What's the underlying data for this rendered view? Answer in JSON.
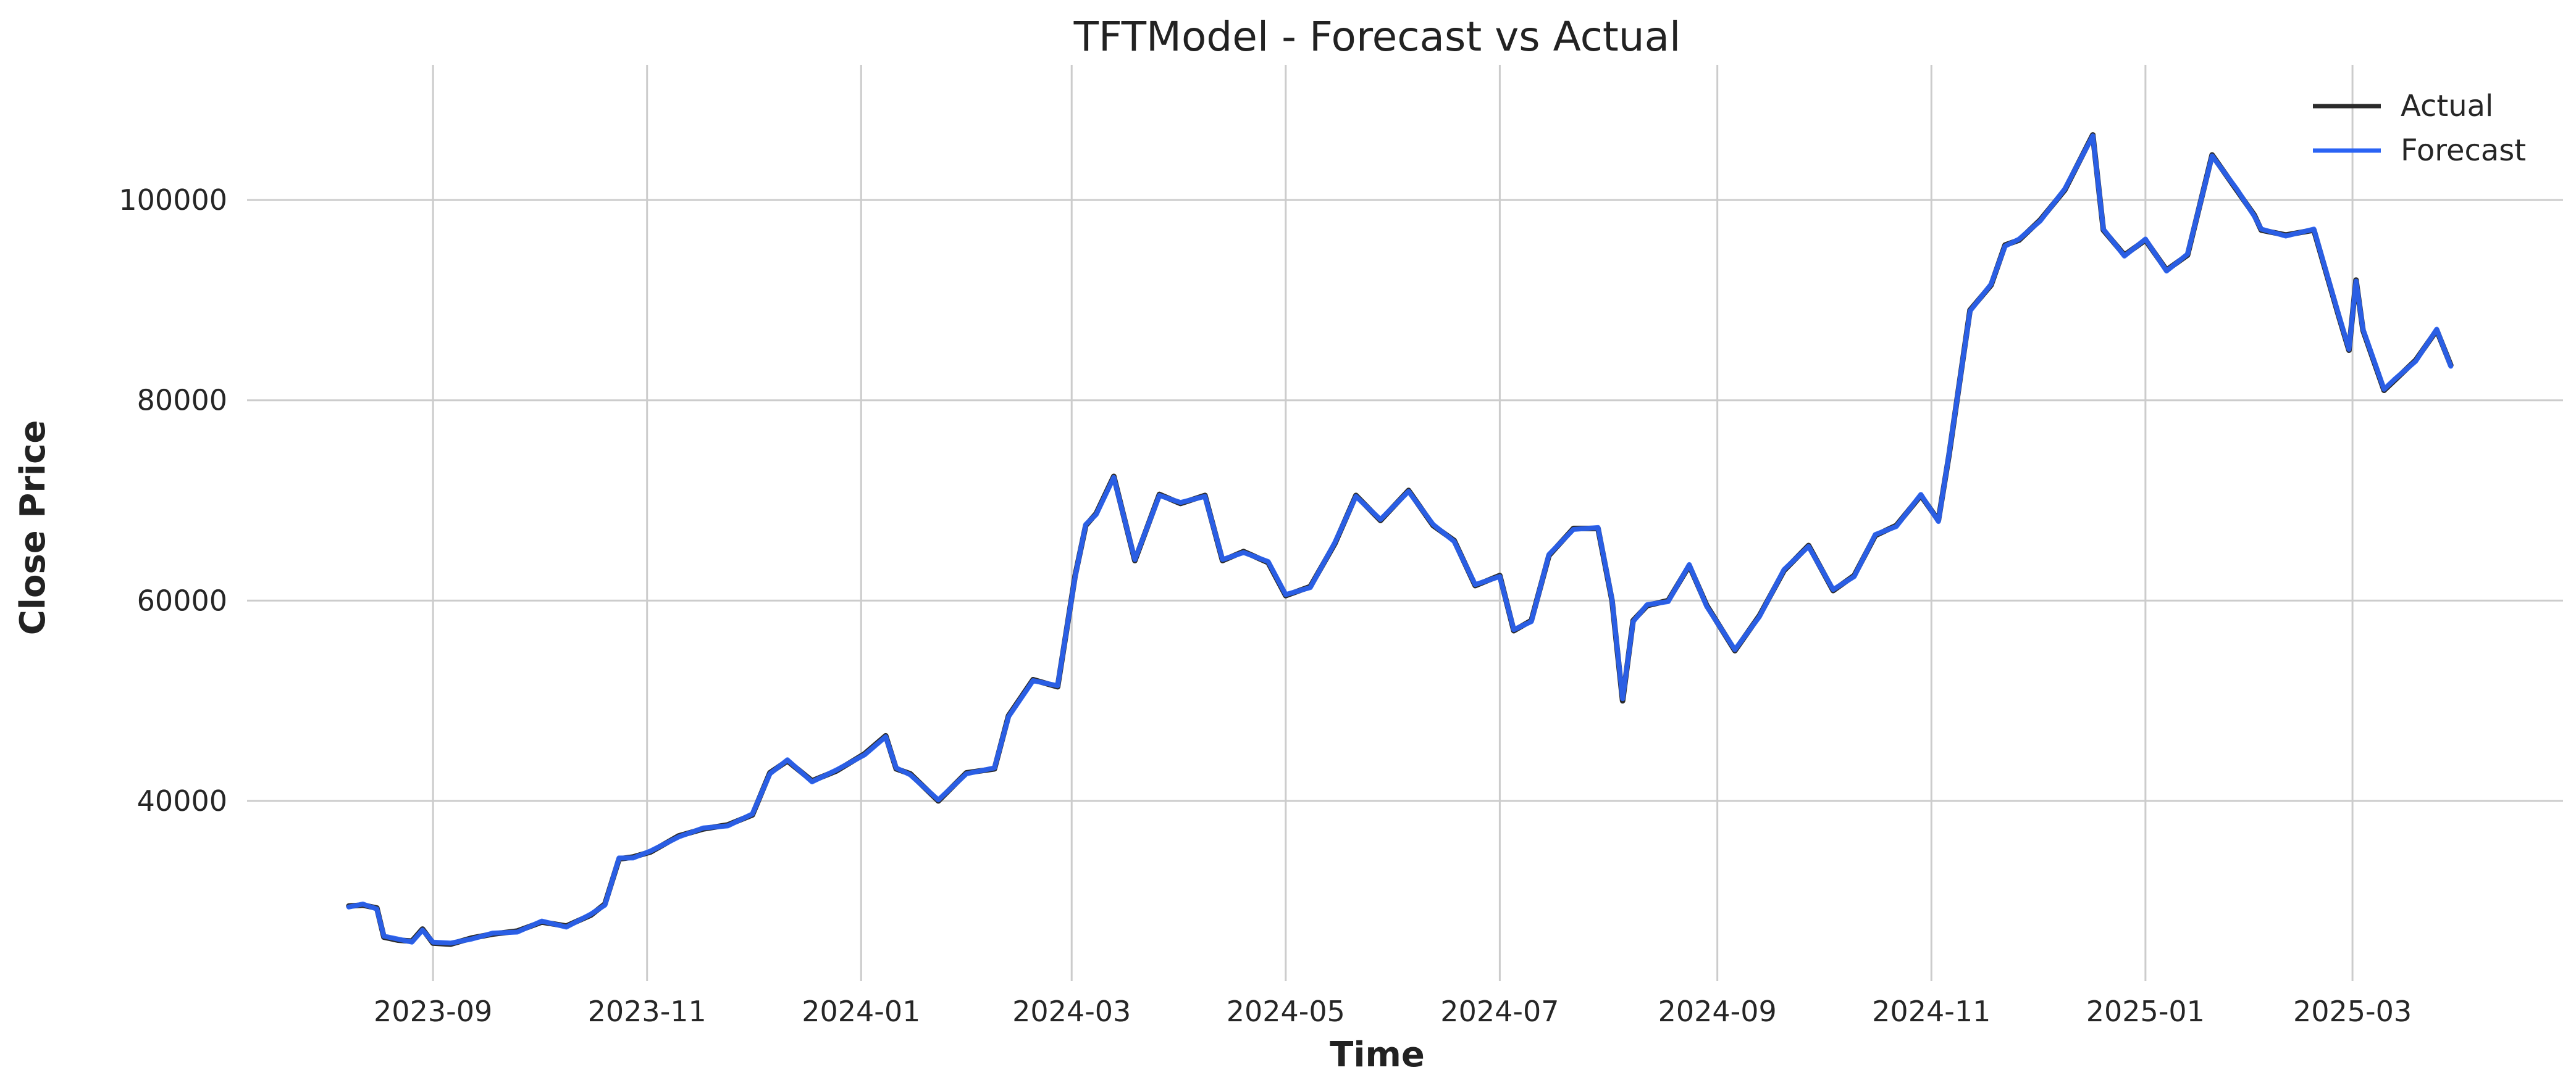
{
  "chart_data": {
    "type": "line",
    "title": "TFTModel - Forecast vs Actual",
    "xlabel": "Time",
    "ylabel": "Close Price",
    "xlim": [
      "2023-07-10",
      "2025-04-30"
    ],
    "ylim": [
      22000,
      113500
    ],
    "x_ticks": [
      "2023-09",
      "2023-11",
      "2024-01",
      "2024-03",
      "2024-05",
      "2024-07",
      "2024-09",
      "2024-11",
      "2025-01",
      "2025-03"
    ],
    "y_ticks": [
      40000,
      60000,
      80000,
      100000
    ],
    "grid": true,
    "legend_position": "top-right",
    "series": [
      {
        "name": "Actual",
        "color": "#2b2b2b",
        "x": [
          "2023-08-08",
          "2023-08-12",
          "2023-08-16",
          "2023-08-18",
          "2023-08-22",
          "2023-08-26",
          "2023-08-29",
          "2023-09-01",
          "2023-09-06",
          "2023-09-12",
          "2023-09-18",
          "2023-09-25",
          "2023-10-02",
          "2023-10-09",
          "2023-10-16",
          "2023-10-20",
          "2023-10-24",
          "2023-10-28",
          "2023-11-02",
          "2023-11-10",
          "2023-11-17",
          "2023-11-24",
          "2023-12-01",
          "2023-12-06",
          "2023-12-11",
          "2023-12-18",
          "2023-12-25",
          "2024-01-02",
          "2024-01-08",
          "2024-01-11",
          "2024-01-15",
          "2024-01-23",
          "2024-01-31",
          "2024-02-08",
          "2024-02-12",
          "2024-02-19",
          "2024-02-26",
          "2024-03-02",
          "2024-03-05",
          "2024-03-08",
          "2024-03-13",
          "2024-03-19",
          "2024-03-26",
          "2024-04-01",
          "2024-04-08",
          "2024-04-13",
          "2024-04-19",
          "2024-04-26",
          "2024-05-01",
          "2024-05-08",
          "2024-05-15",
          "2024-05-21",
          "2024-05-28",
          "2024-06-05",
          "2024-06-12",
          "2024-06-18",
          "2024-06-24",
          "2024-07-01",
          "2024-07-05",
          "2024-07-10",
          "2024-07-15",
          "2024-07-22",
          "2024-07-29",
          "2024-08-02",
          "2024-08-05",
          "2024-08-08",
          "2024-08-12",
          "2024-08-18",
          "2024-08-24",
          "2024-08-29",
          "2024-09-06",
          "2024-09-13",
          "2024-09-20",
          "2024-09-27",
          "2024-10-04",
          "2024-10-10",
          "2024-10-16",
          "2024-10-22",
          "2024-10-29",
          "2024-11-03",
          "2024-11-06",
          "2024-11-12",
          "2024-11-18",
          "2024-11-22",
          "2024-11-26",
          "2024-12-02",
          "2024-12-09",
          "2024-12-17",
          "2024-12-20",
          "2024-12-26",
          "2025-01-01",
          "2025-01-07",
          "2025-01-13",
          "2025-01-20",
          "2025-01-27",
          "2025-02-01",
          "2025-02-03",
          "2025-02-10",
          "2025-02-18",
          "2025-02-25",
          "2025-02-28",
          "2025-03-02",
          "2025-03-04",
          "2025-03-10",
          "2025-03-13",
          "2025-03-19",
          "2025-03-25",
          "2025-03-29"
        ],
        "y": [
          29500,
          29600,
          29300,
          26400,
          26100,
          26000,
          27200,
          25800,
          25700,
          26300,
          26700,
          27000,
          27900,
          27500,
          28600,
          29700,
          34200,
          34400,
          34900,
          36500,
          37200,
          37600,
          38600,
          42800,
          44000,
          42000,
          43000,
          44700,
          46500,
          43200,
          42700,
          40000,
          42800,
          43200,
          48500,
          52100,
          51400,
          62500,
          67500,
          68700,
          72400,
          64000,
          70600,
          69700,
          70500,
          64000,
          64900,
          63800,
          60500,
          61400,
          65700,
          70500,
          68000,
          71000,
          67500,
          66000,
          61500,
          62500,
          57000,
          58000,
          64500,
          67200,
          67200,
          60000,
          50000,
          58000,
          59500,
          60000,
          63500,
          59500,
          55000,
          58500,
          63000,
          65500,
          61000,
          62500,
          66500,
          67500,
          70500,
          68000,
          74500,
          89000,
          91500,
          95500,
          96000,
          98000,
          101000,
          106500,
          97000,
          94500,
          96000,
          93000,
          94500,
          104500,
          101000,
          98500,
          97000,
          96500,
          97000,
          88500,
          85000,
          92000,
          87000,
          81000,
          82000,
          84000,
          87000,
          83500
        ]
      },
      {
        "name": "Forecast",
        "color": "#2a63f4",
        "x": [
          "2023-08-08",
          "2023-08-12",
          "2023-08-16",
          "2023-08-18",
          "2023-08-22",
          "2023-08-26",
          "2023-08-29",
          "2023-09-01",
          "2023-09-06",
          "2023-09-12",
          "2023-09-18",
          "2023-09-25",
          "2023-10-02",
          "2023-10-09",
          "2023-10-16",
          "2023-10-20",
          "2023-10-24",
          "2023-10-28",
          "2023-11-02",
          "2023-11-10",
          "2023-11-17",
          "2023-11-24",
          "2023-12-01",
          "2023-12-06",
          "2023-12-11",
          "2023-12-18",
          "2023-12-25",
          "2024-01-02",
          "2024-01-08",
          "2024-01-11",
          "2024-01-15",
          "2024-01-23",
          "2024-01-31",
          "2024-02-08",
          "2024-02-12",
          "2024-02-19",
          "2024-02-26",
          "2024-03-02",
          "2024-03-05",
          "2024-03-08",
          "2024-03-13",
          "2024-03-19",
          "2024-03-26",
          "2024-04-01",
          "2024-04-08",
          "2024-04-13",
          "2024-04-19",
          "2024-04-26",
          "2024-05-01",
          "2024-05-08",
          "2024-05-15",
          "2024-05-21",
          "2024-05-28",
          "2024-06-05",
          "2024-06-12",
          "2024-06-18",
          "2024-06-24",
          "2024-07-01",
          "2024-07-05",
          "2024-07-10",
          "2024-07-15",
          "2024-07-22",
          "2024-07-29",
          "2024-08-02",
          "2024-08-05",
          "2024-08-08",
          "2024-08-12",
          "2024-08-18",
          "2024-08-24",
          "2024-08-29",
          "2024-09-06",
          "2024-09-13",
          "2024-09-20",
          "2024-09-27",
          "2024-10-04",
          "2024-10-10",
          "2024-10-16",
          "2024-10-22",
          "2024-10-29",
          "2024-11-03",
          "2024-11-06",
          "2024-11-12",
          "2024-11-18",
          "2024-11-22",
          "2024-11-26",
          "2024-12-02",
          "2024-12-09",
          "2024-12-17",
          "2024-12-20",
          "2024-12-26",
          "2025-01-01",
          "2025-01-07",
          "2025-01-13",
          "2025-01-20",
          "2025-01-27",
          "2025-02-01",
          "2025-02-03",
          "2025-02-10",
          "2025-02-18",
          "2025-02-25",
          "2025-02-28",
          "2025-03-02",
          "2025-03-04",
          "2025-03-10",
          "2025-03-13",
          "2025-03-19",
          "2025-03-25",
          "2025-03-29"
        ],
        "y": [
          29400,
          29700,
          29200,
          26500,
          26200,
          25900,
          27100,
          25900,
          25800,
          26200,
          26800,
          26900,
          28000,
          27400,
          28700,
          29600,
          34300,
          34300,
          35000,
          36400,
          37300,
          37500,
          38700,
          42700,
          44100,
          41900,
          43100,
          44600,
          46400,
          43300,
          42600,
          40100,
          42700,
          43300,
          48400,
          52000,
          51500,
          62400,
          67600,
          68600,
          72300,
          64100,
          70500,
          69800,
          70400,
          64100,
          64800,
          63900,
          60600,
          61300,
          65800,
          70400,
          68100,
          70900,
          67600,
          65900,
          61600,
          62400,
          57100,
          57900,
          64600,
          67100,
          67300,
          60100,
          50200,
          57900,
          59600,
          59900,
          63600,
          59400,
          55100,
          58400,
          63100,
          65400,
          61100,
          62400,
          66600,
          67400,
          70600,
          67900,
          74600,
          88900,
          91600,
          95400,
          96100,
          97900,
          101100,
          106400,
          97100,
          94400,
          96100,
          92900,
          94600,
          104400,
          101100,
          98400,
          97100,
          96400,
          97100,
          88600,
          85100,
          91900,
          87100,
          81100,
          82100,
          83900,
          87100,
          83400
        ]
      }
    ]
  }
}
